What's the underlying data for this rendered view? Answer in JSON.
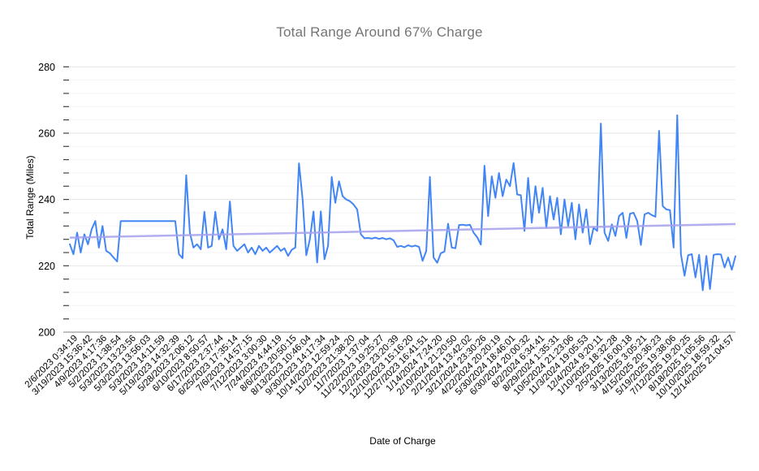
{
  "title": "Total Range Around 67% Charge",
  "colors": {
    "series": "#4285f4",
    "trendline": "#a5a1ee",
    "title": "#757575",
    "axis_text": "#000000",
    "gridline_major": "#e3e3e3",
    "gridline_minor": "#f3f3f3",
    "baseline": "#808080",
    "tick": "#424242",
    "background": "#ffffff"
  },
  "chart_data": {
    "type": "line",
    "title": "Total Range Around 67% Charge",
    "xlabel": "Date of Charge",
    "ylabel": "Total Range (Miles)",
    "ylim": [
      200,
      280
    ],
    "y_major_ticks": [
      200,
      220,
      240,
      260,
      280
    ],
    "y_minor_step": 4,
    "grid": "horizontal",
    "legend": "none",
    "x_tick_labels": [
      "2/6/2023 0:34:19",
      "3/19/2023 15:36:42",
      "4/9/2023 4:17:36",
      "5/2/2023 1:38:54",
      "5/3/2023 13:23:56",
      "5/3/2023 13:56:03",
      "5/3/2023 14:11:59",
      "5/19/2023 14:32:39",
      "5/28/2023 2:06:12",
      "6/10/2023 8:50:57",
      "6/17/2023 2:37:44",
      "6/25/2023 17:35:14",
      "7/6/2023 14:57:15",
      "7/12/2023 3:00:30",
      "7/24/2023 4:44:19",
      "8/6/2023 20:50:15",
      "8/13/2023 10:46:04",
      "9/30/2023 14:17:34",
      "10/14/2023 12:59:24",
      "11/2/2023 21:38:20",
      "11/7/2023 1:37:04",
      "11/22/2023 19:25:27",
      "12/2/2023 23:20:39",
      "12/10/2023 15:16:20",
      "12/27/2023 16:41:51",
      "1/14/2024 7:24:20",
      "2/10/2024 21:20:50",
      "2/21/2024 13:42:02",
      "3/21/2024 23:30:26",
      "4/22/2024 20:20:19",
      "5/30/2024 18:46:01",
      "6/30/2024 20:00:32",
      "8/2/2024 6:34:41",
      "8/29/2024 1:35:31",
      "10/5/2024 21:23:06",
      "11/3/2024 19:05:53",
      "12/4/2024 9:20:11",
      "1/10/2025 18:32:28",
      "2/5/2025 16:00:18",
      "3/13/2025 3:05:21",
      "4/15/2025 20:36:23",
      "5/19/2025 19:38:06",
      "7/12/2025 19:20:25",
      "8/18/2025 1:05:56",
      "10/10/2025 18:59:32",
      "12/14/2025 21:04:57"
    ],
    "series": [
      {
        "name": "Total Range",
        "color": "#4285f4",
        "values": [
          226.5,
          223.5,
          230,
          224,
          229.5,
          226.5,
          231,
          233.5,
          225.5,
          232,
          224.5,
          223.8,
          222.5,
          221.3,
          233.5,
          233.5,
          233.5,
          233.5,
          233.5,
          233.5,
          233.5,
          233.5,
          233.5,
          233.5,
          233.5,
          233.5,
          233.5,
          233.5,
          233.5,
          233.5,
          223.5,
          222.3,
          247.3,
          230,
          225.5,
          226.5,
          225,
          236.3,
          225.5,
          226,
          236.3,
          228,
          231,
          225,
          239.4,
          226,
          224.5,
          225.5,
          226.5,
          224,
          225.5,
          223.5,
          226,
          224.5,
          225.5,
          224,
          225,
          226,
          224.5,
          225.3,
          223,
          224.8,
          225.5,
          250.9,
          240,
          223.2,
          228,
          236.4,
          221,
          236.4,
          222,
          226,
          246.8,
          239,
          245.5,
          241,
          240,
          239.5,
          238.5,
          237,
          229.5,
          228.3,
          228.4,
          228.2,
          228.5,
          228.1,
          228.4,
          228,
          228.3,
          227.7,
          225.7,
          226,
          225.6,
          226.2,
          225.8,
          226.1,
          225.7,
          221.5,
          224.5,
          246.8,
          222.5,
          220.9,
          223.8,
          224.3,
          232.7,
          225.5,
          225.3,
          232.3,
          232.4,
          232.2,
          232.4,
          230,
          228.6,
          226.4,
          250.2,
          235,
          247,
          240.5,
          248,
          241,
          246,
          244,
          251,
          241.5,
          241.3,
          230.5,
          246.5,
          233,
          244,
          236,
          243.5,
          231.5,
          241,
          234,
          240.5,
          229.5,
          240,
          232,
          239,
          228,
          238.5,
          230,
          237,
          226.5,
          231.5,
          230.5,
          262.9,
          230,
          227.5,
          232.5,
          229,
          235,
          236,
          228.4,
          235.7,
          236,
          233.5,
          226.3,
          235.5,
          236,
          235.3,
          234.8,
          260.7,
          238,
          237,
          236.8,
          225.5,
          265.4,
          223.5,
          217,
          223.2,
          223.5,
          216.5,
          223.3,
          212.6,
          223,
          213,
          223.3,
          223.5,
          223.4,
          219.5,
          222.5,
          218.8,
          222.9
        ]
      },
      {
        "name": "Trendline",
        "type": "trend",
        "color": "#a5a1ee",
        "start": 228.5,
        "end": 232.6
      }
    ]
  }
}
